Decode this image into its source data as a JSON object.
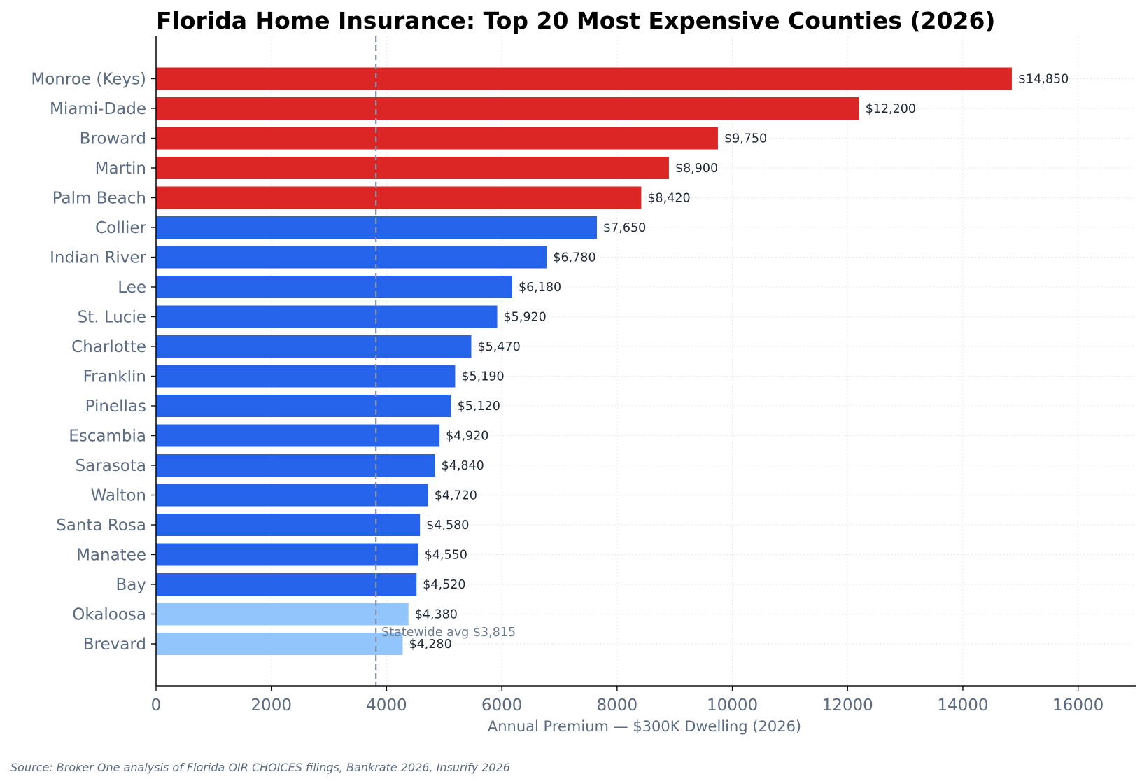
{
  "chart_data": {
    "type": "bar",
    "orientation": "horizontal",
    "title": "Florida Home Insurance: Top 20 Most Expensive Counties (2026)",
    "xlabel": "Annual Premium — $300K Dwelling (2026)",
    "ylabel": "",
    "xlim": [
      0,
      17000
    ],
    "x_ticks": [
      0,
      2000,
      4000,
      6000,
      8000,
      10000,
      12000,
      14000,
      16000
    ],
    "grid": true,
    "categories": [
      "Monroe (Keys)",
      "Miami-Dade",
      "Broward",
      "Martin",
      "Palm Beach",
      "Collier",
      "Indian River",
      "Lee",
      "St. Lucie",
      "Charlotte",
      "Franklin",
      "Pinellas",
      "Escambia",
      "Sarasota",
      "Walton",
      "Santa Rosa",
      "Manatee",
      "Bay",
      "Okaloosa",
      "Brevard"
    ],
    "values": [
      14850,
      12200,
      9750,
      8900,
      8420,
      7650,
      6780,
      6180,
      5920,
      5470,
      5190,
      5120,
      4920,
      4840,
      4720,
      4580,
      4550,
      4520,
      4380,
      4280
    ],
    "value_labels": [
      "$14,850",
      "$12,200",
      "$9,750",
      "$8,900",
      "$8,420",
      "$7,650",
      "$6,780",
      "$6,180",
      "$5,920",
      "$5,470",
      "$5,190",
      "$5,120",
      "$4,920",
      "$4,840",
      "$4,720",
      "$4,580",
      "$4,550",
      "$4,520",
      "$4,380",
      "$4,280"
    ],
    "colors": [
      "#dc2626",
      "#dc2626",
      "#dc2626",
      "#dc2626",
      "#dc2626",
      "#2563eb",
      "#2563eb",
      "#2563eb",
      "#2563eb",
      "#2563eb",
      "#2563eb",
      "#2563eb",
      "#2563eb",
      "#2563eb",
      "#2563eb",
      "#2563eb",
      "#2563eb",
      "#2563eb",
      "#93c5fd",
      "#93c5fd"
    ],
    "reference_line": {
      "value": 3815,
      "label": "Statewide avg $3,815",
      "color": "#8593a8"
    },
    "source": "Source: Broker One analysis of Florida OIR CHOICES filings, Bankrate 2026, Insurify 2026"
  }
}
